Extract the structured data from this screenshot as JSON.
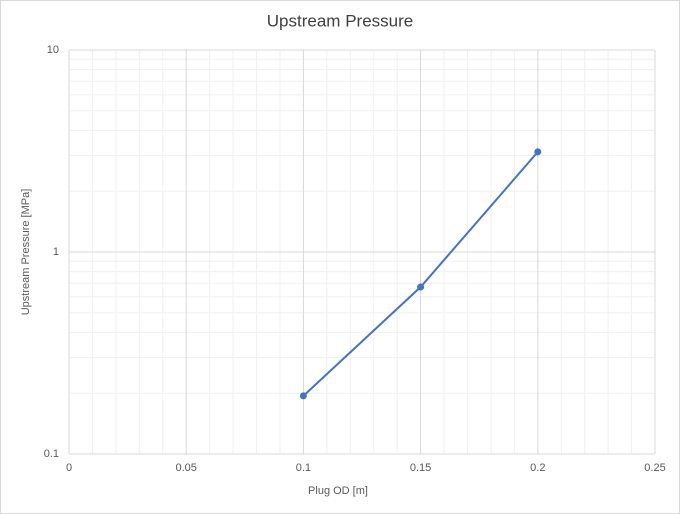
{
  "chart_data": {
    "type": "line",
    "title": "Upstream Pressure",
    "x_label": "Plug OD [m]",
    "y_label": "Upstream Pressure [MPa]",
    "series": [
      {
        "name": "Upstream Pressure",
        "color": "#4472c4",
        "x": [
          0.1,
          0.15,
          0.2
        ],
        "values": [
          0.194,
          0.671,
          3.13
        ]
      }
    ],
    "xlim": [
      0,
      0.25
    ],
    "xticks": [
      0,
      0.05,
      0.1,
      0.15,
      0.2,
      0.25
    ],
    "ylim": [
      0.1,
      10
    ],
    "yticks": [
      0.1,
      1,
      10
    ],
    "yscale": "log",
    "grid": true,
    "minor_grid": true,
    "markers": true
  }
}
